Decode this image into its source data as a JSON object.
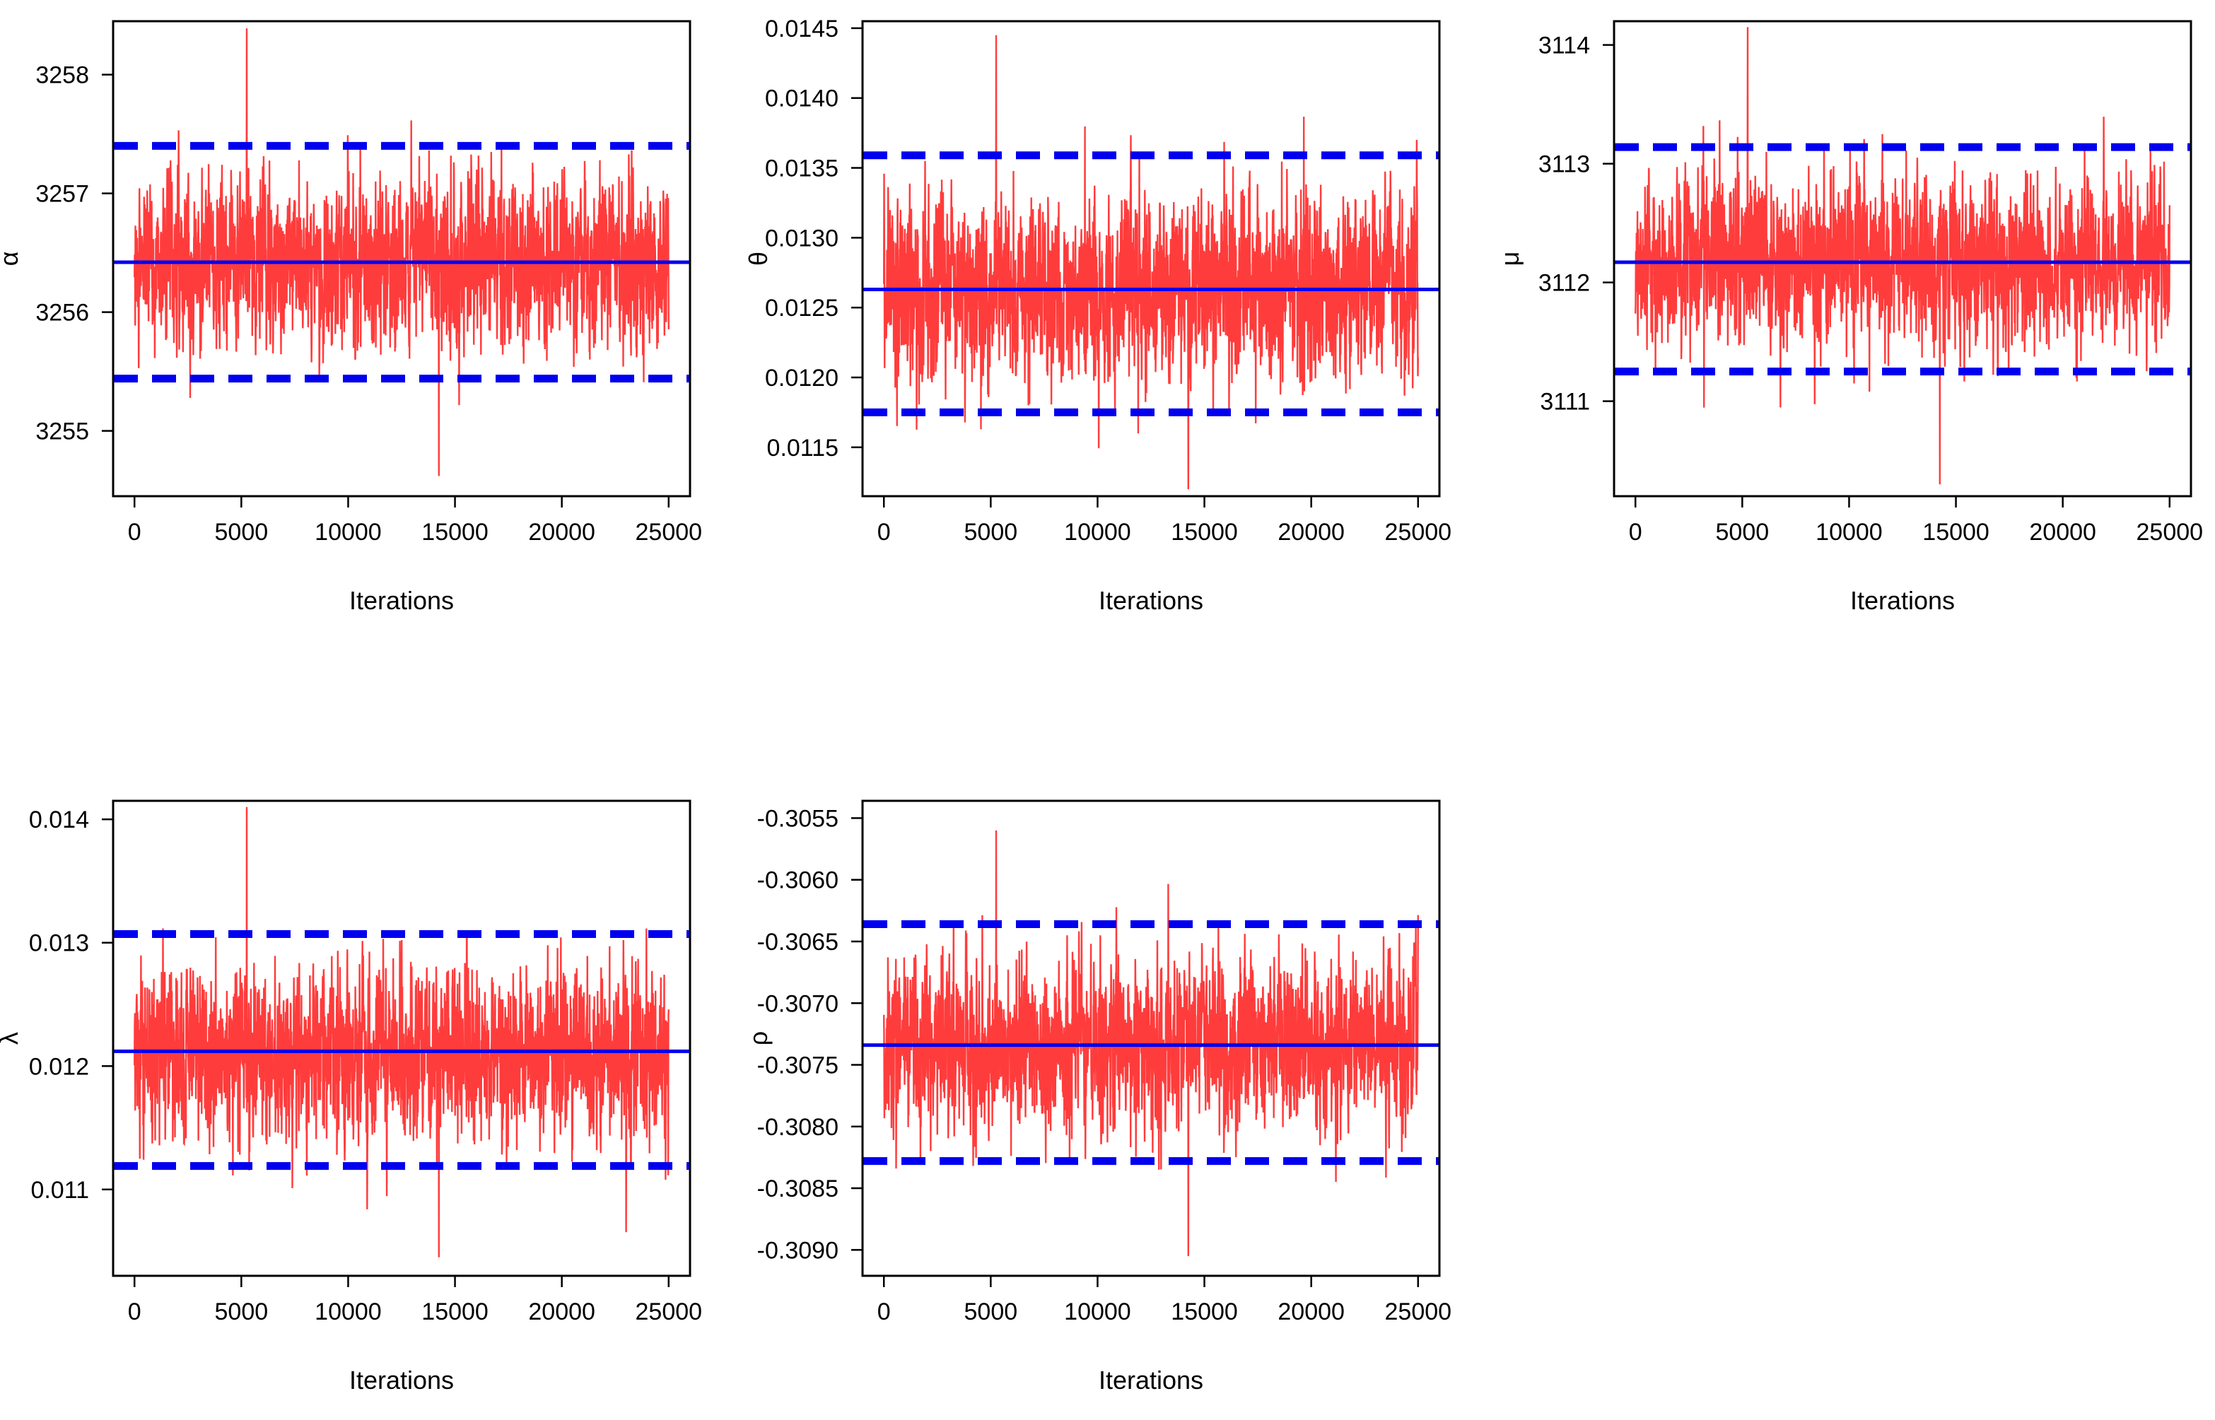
{
  "chart_data": [
    {
      "type": "line",
      "title": "",
      "xlabel": "Iterations",
      "ylabel": "α",
      "x_range": [
        0,
        25000
      ],
      "xlim": [
        -1000,
        26000
      ],
      "x_ticks": [
        0,
        5000,
        10000,
        15000,
        20000,
        25000
      ],
      "x_tick_labels": [
        "0",
        "5000",
        "10000",
        "15000",
        "20000",
        "25000"
      ],
      "ylim": [
        3254.45,
        3258.45
      ],
      "y_ticks": [
        3255,
        3256,
        3257,
        3258
      ],
      "y_tick_labels": [
        "3255",
        "3256",
        "3257",
        "3258"
      ],
      "series": [
        {
          "name": "MCMC trace",
          "kind": "trace",
          "color": "#ff3c3c",
          "mean": 3256.42,
          "sd": 0.33,
          "min": 3254.62,
          "max": 3258.39,
          "n": 25000
        },
        {
          "name": "posterior mean",
          "kind": "hline",
          "style": "solid",
          "color": "#0000ee",
          "value": 3256.42
        },
        {
          "name": "lower bound",
          "kind": "hline",
          "style": "dashed",
          "color": "#0000ee",
          "value": 3255.44
        },
        {
          "name": "upper bound",
          "kind": "hline",
          "style": "dashed",
          "color": "#0000ee",
          "value": 3257.4
        }
      ],
      "grid": false
    },
    {
      "type": "line",
      "title": "",
      "xlabel": "Iterations",
      "ylabel": "θ",
      "x_range": [
        0,
        25000
      ],
      "xlim": [
        -1000,
        26000
      ],
      "x_ticks": [
        0,
        5000,
        10000,
        15000,
        20000,
        25000
      ],
      "x_tick_labels": [
        "0",
        "5000",
        "10000",
        "15000",
        "20000",
        "25000"
      ],
      "ylim": [
        0.01115,
        0.01455
      ],
      "y_ticks": [
        0.0115,
        0.012,
        0.0125,
        0.013,
        0.0135,
        0.014,
        0.0145
      ],
      "y_tick_labels": [
        "0.0115",
        "0.0120",
        "0.0125",
        "0.0130",
        "0.0135",
        "0.0140",
        "0.0145"
      ],
      "series": [
        {
          "name": "MCMC trace",
          "kind": "trace",
          "color": "#ff3c3c",
          "mean": 0.01263,
          "sd": 0.00032,
          "min": 0.0112,
          "max": 0.01445,
          "n": 25000
        },
        {
          "name": "posterior mean",
          "kind": "hline",
          "style": "solid",
          "color": "#0000ee",
          "value": 0.01263
        },
        {
          "name": "lower bound",
          "kind": "hline",
          "style": "dashed",
          "color": "#0000ee",
          "value": 0.01175
        },
        {
          "name": "upper bound",
          "kind": "hline",
          "style": "dashed",
          "color": "#0000ee",
          "value": 0.01359
        }
      ],
      "grid": false
    },
    {
      "type": "line",
      "title": "",
      "xlabel": "Iterations",
      "ylabel": "μ",
      "x_range": [
        0,
        25000
      ],
      "xlim": [
        -1000,
        26000
      ],
      "x_ticks": [
        0,
        5000,
        10000,
        15000,
        20000,
        25000
      ],
      "x_tick_labels": [
        "0",
        "5000",
        "10000",
        "15000",
        "20000",
        "25000"
      ],
      "ylim": [
        3110.2,
        3114.2
      ],
      "y_ticks": [
        3111,
        3112,
        3113,
        3114
      ],
      "y_tick_labels": [
        "3111",
        "3112",
        "3113",
        "3114"
      ],
      "series": [
        {
          "name": "MCMC trace",
          "kind": "trace",
          "color": "#ff3c3c",
          "mean": 3112.17,
          "sd": 0.32,
          "min": 3110.3,
          "max": 3114.15,
          "n": 25000
        },
        {
          "name": "posterior mean",
          "kind": "hline",
          "style": "solid",
          "color": "#0000ee",
          "value": 3112.17
        },
        {
          "name": "lower bound",
          "kind": "hline",
          "style": "dashed",
          "color": "#0000ee",
          "value": 3111.25
        },
        {
          "name": "upper bound",
          "kind": "hline",
          "style": "dashed",
          "color": "#0000ee",
          "value": 3113.14
        }
      ],
      "grid": false
    },
    {
      "type": "line",
      "title": "",
      "xlabel": "Iterations",
      "ylabel": "λ",
      "x_range": [
        0,
        25000
      ],
      "xlim": [
        -1000,
        26000
      ],
      "x_ticks": [
        0,
        5000,
        10000,
        15000,
        20000,
        25000
      ],
      "x_tick_labels": [
        "0",
        "5000",
        "10000",
        "15000",
        "20000",
        "25000"
      ],
      "ylim": [
        0.0103,
        0.01415
      ],
      "y_ticks": [
        0.011,
        0.012,
        0.013,
        0.014
      ],
      "y_tick_labels": [
        "0.011",
        "0.012",
        "0.013",
        "0.014"
      ],
      "series": [
        {
          "name": "MCMC trace",
          "kind": "trace",
          "color": "#ff3c3c",
          "mean": 0.01212,
          "sd": 0.00033,
          "min": 0.01045,
          "max": 0.0141,
          "n": 25000
        },
        {
          "name": "posterior mean",
          "kind": "hline",
          "style": "solid",
          "color": "#0000ee",
          "value": 0.01212
        },
        {
          "name": "lower bound",
          "kind": "hline",
          "style": "dashed",
          "color": "#0000ee",
          "value": 0.01119
        },
        {
          "name": "upper bound",
          "kind": "hline",
          "style": "dashed",
          "color": "#0000ee",
          "value": 0.01307
        }
      ],
      "grid": false
    },
    {
      "type": "line",
      "title": "",
      "xlabel": "Iterations",
      "ylabel": "ρ",
      "x_range": [
        0,
        25000
      ],
      "xlim": [
        -1000,
        26000
      ],
      "x_ticks": [
        0,
        5000,
        10000,
        15000,
        20000,
        25000
      ],
      "x_tick_labels": [
        "0",
        "5000",
        "10000",
        "15000",
        "20000",
        "25000"
      ],
      "ylim": [
        -0.30921,
        -0.30536
      ],
      "y_ticks": [
        -0.309,
        -0.3085,
        -0.308,
        -0.3075,
        -0.307,
        -0.3065,
        -0.306,
        -0.3055
      ],
      "y_tick_labels": [
        "-0.3090",
        "-0.3085",
        "-0.3080",
        "-0.3075",
        "-0.3070",
        "-0.3065",
        "-0.3060",
        "-0.3055"
      ],
      "series": [
        {
          "name": "MCMC trace",
          "kind": "trace",
          "color": "#ff3c3c",
          "mean": -0.30734,
          "sd": 0.00032,
          "min": -0.30905,
          "max": -0.3056,
          "n": 25000
        },
        {
          "name": "posterior mean",
          "kind": "hline",
          "style": "solid",
          "color": "#0000ee",
          "value": -0.30734
        },
        {
          "name": "lower bound",
          "kind": "hline",
          "style": "dashed",
          "color": "#0000ee",
          "value": -0.30828
        },
        {
          "name": "upper bound",
          "kind": "hline",
          "style": "dashed",
          "color": "#0000ee",
          "value": -0.30636
        }
      ],
      "grid": false
    }
  ]
}
